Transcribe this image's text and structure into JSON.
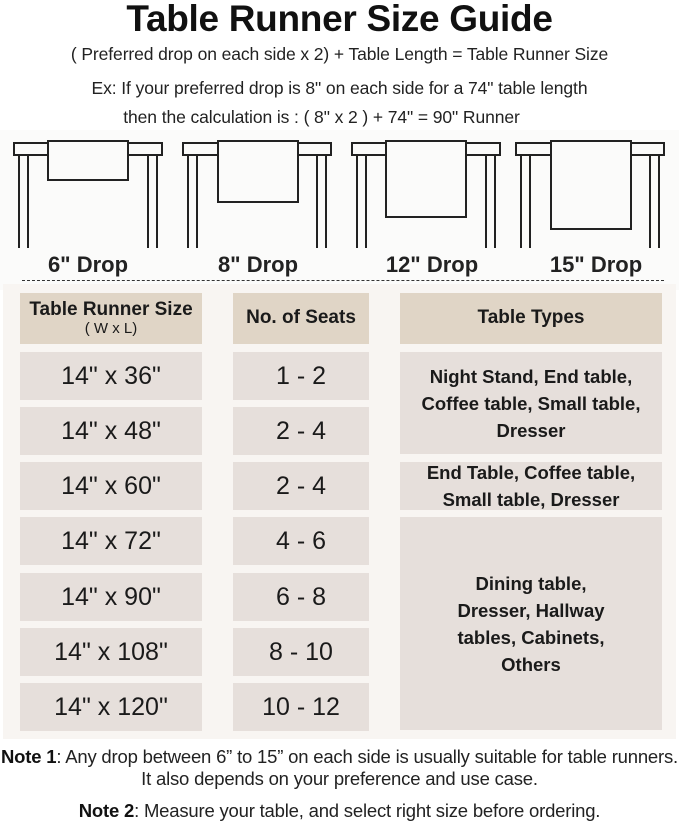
{
  "title": "Table Runner Size Guide",
  "formula": "( Preferred drop on each side x 2) + Table Length = Table Runner Size",
  "example_line1": "Ex: If your preferred drop is 8\" on each side for a 74\" table length",
  "example_line2": "then the calculation is : ( 8\" x 2 ) + 74\" = 90\" Runner",
  "drops": [
    "6\" Drop",
    "8\" Drop",
    "12\" Drop",
    "15\" Drop"
  ],
  "table": {
    "headers": {
      "size": "Table Runner Size",
      "size_sub": "( W x L)",
      "seats": "No. of Seats",
      "types": "Table Types"
    },
    "rows": [
      {
        "size": "14\" x 36\"",
        "seats": "1 - 2"
      },
      {
        "size": "14\" x 48\"",
        "seats": "2 - 4"
      },
      {
        "size": "14\" x 60\"",
        "seats": "2 - 4"
      },
      {
        "size": "14\" x 72\"",
        "seats": "4 - 6"
      },
      {
        "size": "14\" x 90\"",
        "seats": "6 - 8"
      },
      {
        "size": "14\" x 108\"",
        "seats": "8 - 10"
      },
      {
        "size": "14\" x 120\"",
        "seats": "10 - 12"
      }
    ],
    "types": [
      "Night Stand, End table, Coffee table, Small table, Dresser",
      "End Table, Coffee table, Small table, Dresser",
      "Dining table, Dresser, Hallway tables, Cabinets, Others"
    ]
  },
  "notes": [
    {
      "label": "Note 1",
      "text": ": Any drop between 6” to 15” on each side is usually suitable for table runners. It also depends on your preference and use case."
    },
    {
      "label": "Note 2",
      "text": ": Measure your table, and select right size before ordering."
    }
  ],
  "colors": {
    "header_cell": "#e0d5c6",
    "body_cell": "#e6dfdb",
    "table_background": "#f8f5f2"
  }
}
